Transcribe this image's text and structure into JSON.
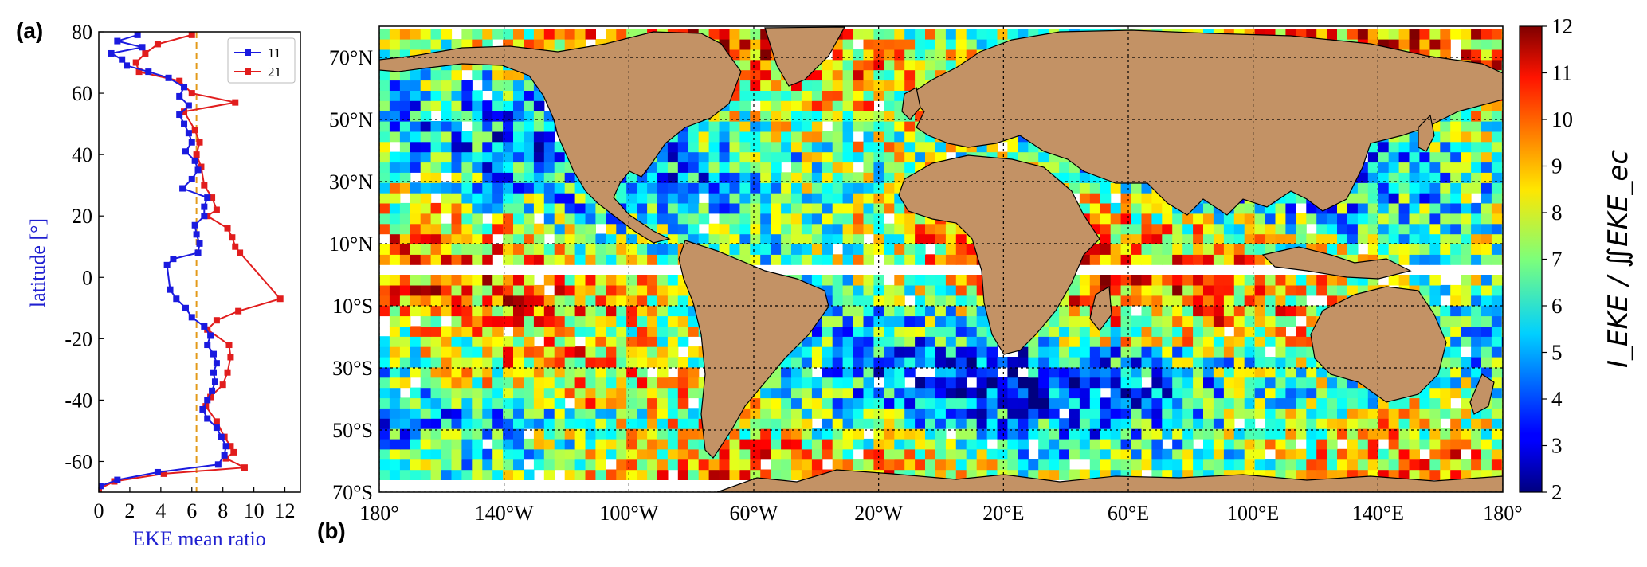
{
  "panels": {
    "a": "(a)",
    "b": "(b)"
  },
  "colors": {
    "series11": "#1a1adf",
    "series21": "#e11d1d",
    "meanline": "#e39a1a",
    "land": "#c39265",
    "ocean_gap": "#ffffff"
  },
  "chart_data": [
    {
      "type": "line",
      "panel": "(a)",
      "xlabel": "EKE mean ratio",
      "ylabel": "latitude  [°]",
      "xlim": [
        0,
        13
      ],
      "ylim": [
        -70,
        80
      ],
      "x_ticks": [
        0,
        2,
        4,
        6,
        8,
        10,
        12
      ],
      "y_ticks": [
        -60,
        -40,
        -20,
        0,
        20,
        40,
        60,
        80
      ],
      "reference_line_x": 6.3,
      "legend": {
        "placement": "top-right",
        "entries": [
          "11",
          "21"
        ]
      },
      "series": [
        {
          "name": "11",
          "color": "#1a1adf",
          "marker": "square",
          "points": [
            {
              "x": 2.5,
              "y": 79
            },
            {
              "x": 1.2,
              "y": 77
            },
            {
              "x": 2.8,
              "y": 75
            },
            {
              "x": 0.8,
              "y": 73
            },
            {
              "x": 1.5,
              "y": 71
            },
            {
              "x": 1.8,
              "y": 69
            },
            {
              "x": 3.2,
              "y": 67
            },
            {
              "x": 4.5,
              "y": 65
            },
            {
              "x": 5.5,
              "y": 62
            },
            {
              "x": 5.2,
              "y": 59
            },
            {
              "x": 5.8,
              "y": 56
            },
            {
              "x": 5.2,
              "y": 53
            },
            {
              "x": 5.5,
              "y": 50
            },
            {
              "x": 5.8,
              "y": 47
            },
            {
              "x": 6.0,
              "y": 44
            },
            {
              "x": 5.6,
              "y": 41
            },
            {
              "x": 6.2,
              "y": 38
            },
            {
              "x": 6.4,
              "y": 35
            },
            {
              "x": 6.0,
              "y": 32
            },
            {
              "x": 5.4,
              "y": 29
            },
            {
              "x": 7.0,
              "y": 26
            },
            {
              "x": 6.8,
              "y": 23
            },
            {
              "x": 6.8,
              "y": 20
            },
            {
              "x": 6.2,
              "y": 17
            },
            {
              "x": 6.3,
              "y": 14
            },
            {
              "x": 6.5,
              "y": 11
            },
            {
              "x": 6.4,
              "y": 8
            },
            {
              "x": 4.8,
              "y": 6
            },
            {
              "x": 4.4,
              "y": 4
            },
            {
              "x": 4.6,
              "y": -4
            },
            {
              "x": 5.0,
              "y": -7
            },
            {
              "x": 5.6,
              "y": -10
            },
            {
              "x": 6.0,
              "y": -13
            },
            {
              "x": 6.8,
              "y": -16
            },
            {
              "x": 7.2,
              "y": -19
            },
            {
              "x": 7.0,
              "y": -22
            },
            {
              "x": 7.4,
              "y": -25
            },
            {
              "x": 7.6,
              "y": -28
            },
            {
              "x": 7.4,
              "y": -31
            },
            {
              "x": 7.5,
              "y": -34
            },
            {
              "x": 7.3,
              "y": -37
            },
            {
              "x": 7.0,
              "y": -40
            },
            {
              "x": 6.7,
              "y": -43
            },
            {
              "x": 7.0,
              "y": -46
            },
            {
              "x": 7.6,
              "y": -49
            },
            {
              "x": 7.9,
              "y": -52
            },
            {
              "x": 8.2,
              "y": -55
            },
            {
              "x": 8.1,
              "y": -58
            },
            {
              "x": 7.7,
              "y": -61
            },
            {
              "x": 3.8,
              "y": -63.5
            },
            {
              "x": 1.2,
              "y": -66
            },
            {
              "x": 0.1,
              "y": -68
            }
          ]
        },
        {
          "name": "21",
          "color": "#e11d1d",
          "marker": "square",
          "points": [
            {
              "x": 6.0,
              "y": 79
            },
            {
              "x": 3.8,
              "y": 76
            },
            {
              "x": 3.0,
              "y": 73
            },
            {
              "x": 2.4,
              "y": 70
            },
            {
              "x": 2.6,
              "y": 67
            },
            {
              "x": 5.2,
              "y": 64
            },
            {
              "x": 6.0,
              "y": 60
            },
            {
              "x": 8.8,
              "y": 57
            },
            {
              "x": 5.5,
              "y": 54
            },
            {
              "x": 6.2,
              "y": 48
            },
            {
              "x": 6.5,
              "y": 44
            },
            {
              "x": 6.3,
              "y": 40
            },
            {
              "x": 6.6,
              "y": 36
            },
            {
              "x": 6.8,
              "y": 30
            },
            {
              "x": 7.3,
              "y": 26
            },
            {
              "x": 7.6,
              "y": 22
            },
            {
              "x": 7.0,
              "y": 20
            },
            {
              "x": 8.3,
              "y": 16
            },
            {
              "x": 8.6,
              "y": 13
            },
            {
              "x": 8.8,
              "y": 10
            },
            {
              "x": 9.1,
              "y": 8
            },
            {
              "x": 11.7,
              "y": -7
            },
            {
              "x": 9.0,
              "y": -11
            },
            {
              "x": 7.6,
              "y": -14
            },
            {
              "x": 7.0,
              "y": -17
            },
            {
              "x": 8.4,
              "y": -22
            },
            {
              "x": 8.5,
              "y": -26
            },
            {
              "x": 8.3,
              "y": -31
            },
            {
              "x": 8.0,
              "y": -35
            },
            {
              "x": 7.2,
              "y": -39
            },
            {
              "x": 6.9,
              "y": -42
            },
            {
              "x": 7.6,
              "y": -47
            },
            {
              "x": 8.1,
              "y": -52
            },
            {
              "x": 8.5,
              "y": -55
            },
            {
              "x": 8.7,
              "y": -57
            },
            {
              "x": 8.2,
              "y": -59
            },
            {
              "x": 9.4,
              "y": -62
            },
            {
              "x": 4.2,
              "y": -64
            },
            {
              "x": 1.0,
              "y": -66.5
            },
            {
              "x": 0.0,
              "y": -69
            }
          ]
        }
      ]
    },
    {
      "type": "heatmap",
      "panel": "(b)",
      "x_tick_labels": [
        "180°",
        "140°W",
        "100°W",
        "60°W",
        "20°W",
        "20°E",
        "60°E",
        "100°E",
        "140°E",
        "180°"
      ],
      "x_tick_values": [
        -180,
        -140,
        -100,
        -60,
        -20,
        20,
        60,
        100,
        140,
        180
      ],
      "y_tick_labels": [
        "70°N",
        "50°N",
        "30°N",
        "10°N",
        "10°S",
        "30°S",
        "50°S",
        "70°S"
      ],
      "y_tick_values": [
        70,
        50,
        30,
        10,
        -10,
        -30,
        -50,
        -70
      ],
      "xlim": [
        -180,
        180
      ],
      "ylim": [
        -70,
        80
      ],
      "grid": true,
      "colorscale": "jet",
      "colorbar": {
        "range": [
          2,
          12
        ],
        "ticks": [
          2,
          3,
          4,
          5,
          6,
          7,
          8,
          9,
          10,
          11,
          12
        ],
        "label": "I_EKE / ∬EKE_ec"
      }
    }
  ]
}
